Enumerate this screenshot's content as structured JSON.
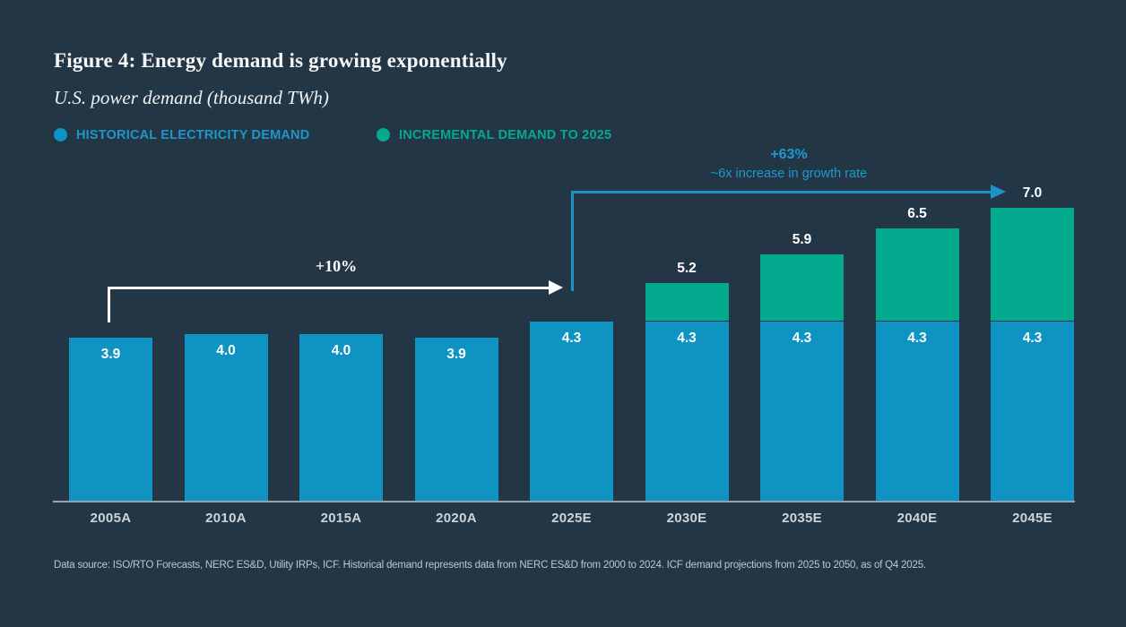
{
  "header": {
    "title": "Figure 4: Energy demand is growing exponentially",
    "subtitle": "U.S. power demand (thousand TWh)"
  },
  "legend": [
    {
      "label": "HISTORICAL ELECTRICITY DEMAND",
      "color": "#0e93c3"
    },
    {
      "label": "INCREMENTAL DEMAND TO 2025",
      "color": "#03aa8e"
    }
  ],
  "annotations": {
    "historical_growth": "+10%",
    "projected_growth": "+63%",
    "projected_growth_sub": "~6x increase in growth rate"
  },
  "colors": {
    "background": "#233645",
    "bar_historical": "#0e93c3",
    "bar_incremental": "#03aa8e",
    "accent_blue": "#2098cf",
    "axis_line": "#97a2aa",
    "text_primary": "#f4f6f7",
    "axis_label": "#ccd4d9"
  },
  "chart_data": {
    "type": "bar",
    "stacked": true,
    "title": "Figure 4: Energy demand is growing exponentially",
    "ylabel": "U.S. power demand (thousand TWh)",
    "categories": [
      "2005A",
      "2010A",
      "2015A",
      "2020A",
      "2025E",
      "2030E",
      "2035E",
      "2040E",
      "2045E"
    ],
    "series": [
      {
        "name": "HISTORICAL ELECTRICITY DEMAND",
        "color": "#0e93c3",
        "values": [
          3.9,
          4.0,
          4.0,
          3.9,
          4.3,
          4.3,
          4.3,
          4.3,
          4.3
        ]
      },
      {
        "name": "INCREMENTAL DEMAND TO 2025",
        "color": "#03aa8e",
        "values": [
          0,
          0,
          0,
          0,
          0,
          0.9,
          1.6,
          2.2,
          2.7
        ]
      }
    ],
    "totals": [
      3.9,
      4.0,
      4.0,
      3.9,
      4.3,
      5.2,
      5.9,
      6.5,
      7.0
    ],
    "segment_labels": [
      "3.9",
      "4.0",
      "4.0",
      "3.9",
      "4.3",
      "4.3",
      "4.3",
      "4.3",
      "4.3"
    ],
    "total_labels": [
      "",
      "",
      "",
      "",
      "",
      "5.2",
      "5.9",
      "6.5",
      "7.0"
    ],
    "ylim": [
      0,
      7.5
    ],
    "grid": false,
    "legend_position": "top-left"
  },
  "footer": {
    "source": "Data source: ISO/RTO Forecasts, NERC ES&D, Utility IRPs, ICF. Historical demand represents data from NERC ES&D from 2000 to 2024. ICF demand projections from 2025 to 2050, as of Q4 2025."
  }
}
